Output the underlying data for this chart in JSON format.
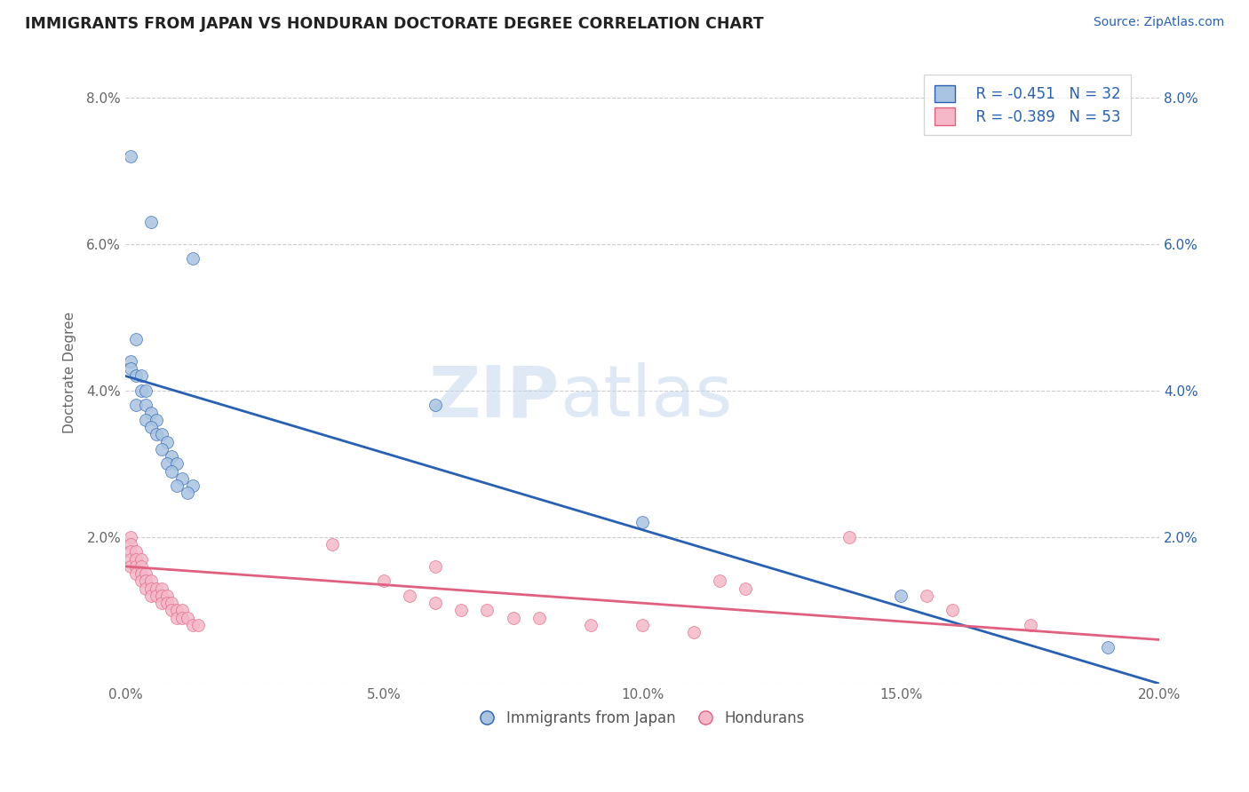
{
  "title": "IMMIGRANTS FROM JAPAN VS HONDURAN DOCTORATE DEGREE CORRELATION CHART",
  "source": "Source: ZipAtlas.com",
  "ylabel": "Doctorate Degree",
  "xlabel": "",
  "xlim": [
    0.0,
    0.2
  ],
  "ylim": [
    0.0,
    0.085
  ],
  "xtick_labels": [
    "0.0%",
    "5.0%",
    "10.0%",
    "15.0%",
    "20.0%"
  ],
  "xtick_vals": [
    0.0,
    0.05,
    0.1,
    0.15,
    0.2
  ],
  "ytick_labels": [
    "",
    "2.0%",
    "4.0%",
    "6.0%",
    "8.0%"
  ],
  "ytick_vals": [
    0.0,
    0.02,
    0.04,
    0.06,
    0.08
  ],
  "japan_R": -0.451,
  "japan_N": 32,
  "honduran_R": -0.389,
  "honduran_N": 53,
  "japan_color": "#a8c4e0",
  "honduran_color": "#f4b8c8",
  "japan_line_color": "#2860b4",
  "honduran_line_color": "#e06080",
  "japan_scatter": [
    [
      0.001,
      0.072
    ],
    [
      0.005,
      0.063
    ],
    [
      0.013,
      0.058
    ],
    [
      0.002,
      0.047
    ],
    [
      0.001,
      0.044
    ],
    [
      0.001,
      0.043
    ],
    [
      0.002,
      0.042
    ],
    [
      0.003,
      0.042
    ],
    [
      0.003,
      0.04
    ],
    [
      0.004,
      0.04
    ],
    [
      0.002,
      0.038
    ],
    [
      0.004,
      0.038
    ],
    [
      0.005,
      0.037
    ],
    [
      0.004,
      0.036
    ],
    [
      0.006,
      0.036
    ],
    [
      0.005,
      0.035
    ],
    [
      0.006,
      0.034
    ],
    [
      0.007,
      0.034
    ],
    [
      0.008,
      0.033
    ],
    [
      0.007,
      0.032
    ],
    [
      0.009,
      0.031
    ],
    [
      0.008,
      0.03
    ],
    [
      0.01,
      0.03
    ],
    [
      0.009,
      0.029
    ],
    [
      0.011,
      0.028
    ],
    [
      0.01,
      0.027
    ],
    [
      0.013,
      0.027
    ],
    [
      0.012,
      0.026
    ],
    [
      0.06,
      0.038
    ],
    [
      0.1,
      0.022
    ],
    [
      0.15,
      0.012
    ],
    [
      0.19,
      0.005
    ]
  ],
  "honduran_scatter": [
    [
      0.001,
      0.02
    ],
    [
      0.001,
      0.019
    ],
    [
      0.001,
      0.018
    ],
    [
      0.001,
      0.017
    ],
    [
      0.001,
      0.016
    ],
    [
      0.002,
      0.018
    ],
    [
      0.002,
      0.017
    ],
    [
      0.002,
      0.016
    ],
    [
      0.002,
      0.015
    ],
    [
      0.003,
      0.017
    ],
    [
      0.003,
      0.016
    ],
    [
      0.003,
      0.015
    ],
    [
      0.003,
      0.014
    ],
    [
      0.004,
      0.015
    ],
    [
      0.004,
      0.014
    ],
    [
      0.004,
      0.013
    ],
    [
      0.005,
      0.014
    ],
    [
      0.005,
      0.013
    ],
    [
      0.005,
      0.012
    ],
    [
      0.006,
      0.013
    ],
    [
      0.006,
      0.012
    ],
    [
      0.007,
      0.013
    ],
    [
      0.007,
      0.012
    ],
    [
      0.007,
      0.011
    ],
    [
      0.008,
      0.012
    ],
    [
      0.008,
      0.011
    ],
    [
      0.009,
      0.011
    ],
    [
      0.009,
      0.01
    ],
    [
      0.01,
      0.01
    ],
    [
      0.01,
      0.009
    ],
    [
      0.011,
      0.01
    ],
    [
      0.011,
      0.009
    ],
    [
      0.012,
      0.009
    ],
    [
      0.013,
      0.008
    ],
    [
      0.014,
      0.008
    ],
    [
      0.04,
      0.019
    ],
    [
      0.05,
      0.014
    ],
    [
      0.055,
      0.012
    ],
    [
      0.06,
      0.011
    ],
    [
      0.06,
      0.016
    ],
    [
      0.065,
      0.01
    ],
    [
      0.07,
      0.01
    ],
    [
      0.075,
      0.009
    ],
    [
      0.08,
      0.009
    ],
    [
      0.09,
      0.008
    ],
    [
      0.1,
      0.008
    ],
    [
      0.11,
      0.007
    ],
    [
      0.115,
      0.014
    ],
    [
      0.12,
      0.013
    ],
    [
      0.14,
      0.02
    ],
    [
      0.155,
      0.012
    ],
    [
      0.16,
      0.01
    ],
    [
      0.175,
      0.008
    ]
  ],
  "japan_trend": [
    0.0,
    0.2
  ],
  "japan_trend_y": [
    0.042,
    0.0
  ],
  "honduran_trend": [
    0.0,
    0.2
  ],
  "honduran_trend_y": [
    0.016,
    0.006
  ],
  "watermark_zip": "ZIP",
  "watermark_atlas": "atlas",
  "background_color": "#ffffff",
  "grid_color": "#cccccc"
}
